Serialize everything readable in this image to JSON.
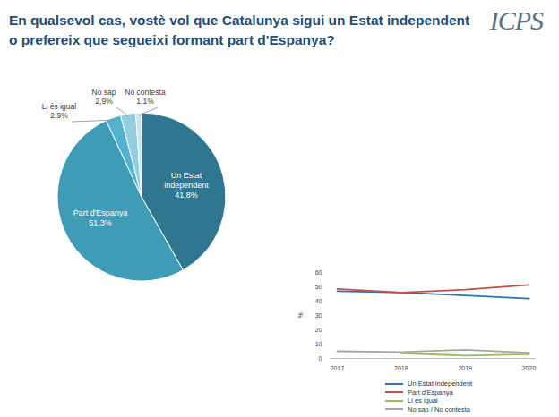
{
  "chart_data": [
    {
      "type": "pie",
      "logo": "ICPS",
      "title": "En qualsevol cas, vostè vol que Catalunya sigui un Estat independent o prefereix que segueixi formant part d'Espanya?",
      "categories": [
        "Un Estat independent",
        "Part d'Espanya",
        "Li és igual",
        "No sap",
        "No contesta"
      ],
      "values": [
        41.8,
        51.3,
        2.9,
        2.9,
        1.1
      ],
      "value_labels": [
        "41,8%",
        "51,3%",
        "2,9%",
        "2,9%",
        "1,1%"
      ],
      "colors": [
        "#2f7790",
        "#3e9cb6",
        "#52b3cf",
        "#93cedf",
        "#c9e4ec"
      ],
      "data_labels": true
    },
    {
      "type": "line",
      "x": [
        2017,
        2018,
        2019,
        2020
      ],
      "xlim": [
        2017,
        2020
      ],
      "xticks": [
        2017,
        2018,
        2019,
        2020
      ],
      "ylim": [
        0,
        60
      ],
      "yticks": [
        0,
        10,
        20,
        30,
        40,
        50,
        60
      ],
      "y_label": "%",
      "grid": false,
      "legend": "bottom",
      "series": [
        {
          "name": "Un Estat independent",
          "color": "#2e75b6",
          "values": [
            47,
            46,
            44,
            41.8
          ]
        },
        {
          "name": "Part d'Espanya",
          "color": "#c0504d",
          "values": [
            48.5,
            46,
            48,
            51.3
          ]
        },
        {
          "name": "Li és igual",
          "color": "#9bbb59",
          "values": [
            null,
            3.5,
            2,
            2.9
          ]
        },
        {
          "name": "No sap / No contesta",
          "color": "#a6a6a6",
          "values": [
            5,
            4.5,
            6,
            4
          ]
        }
      ]
    }
  ]
}
